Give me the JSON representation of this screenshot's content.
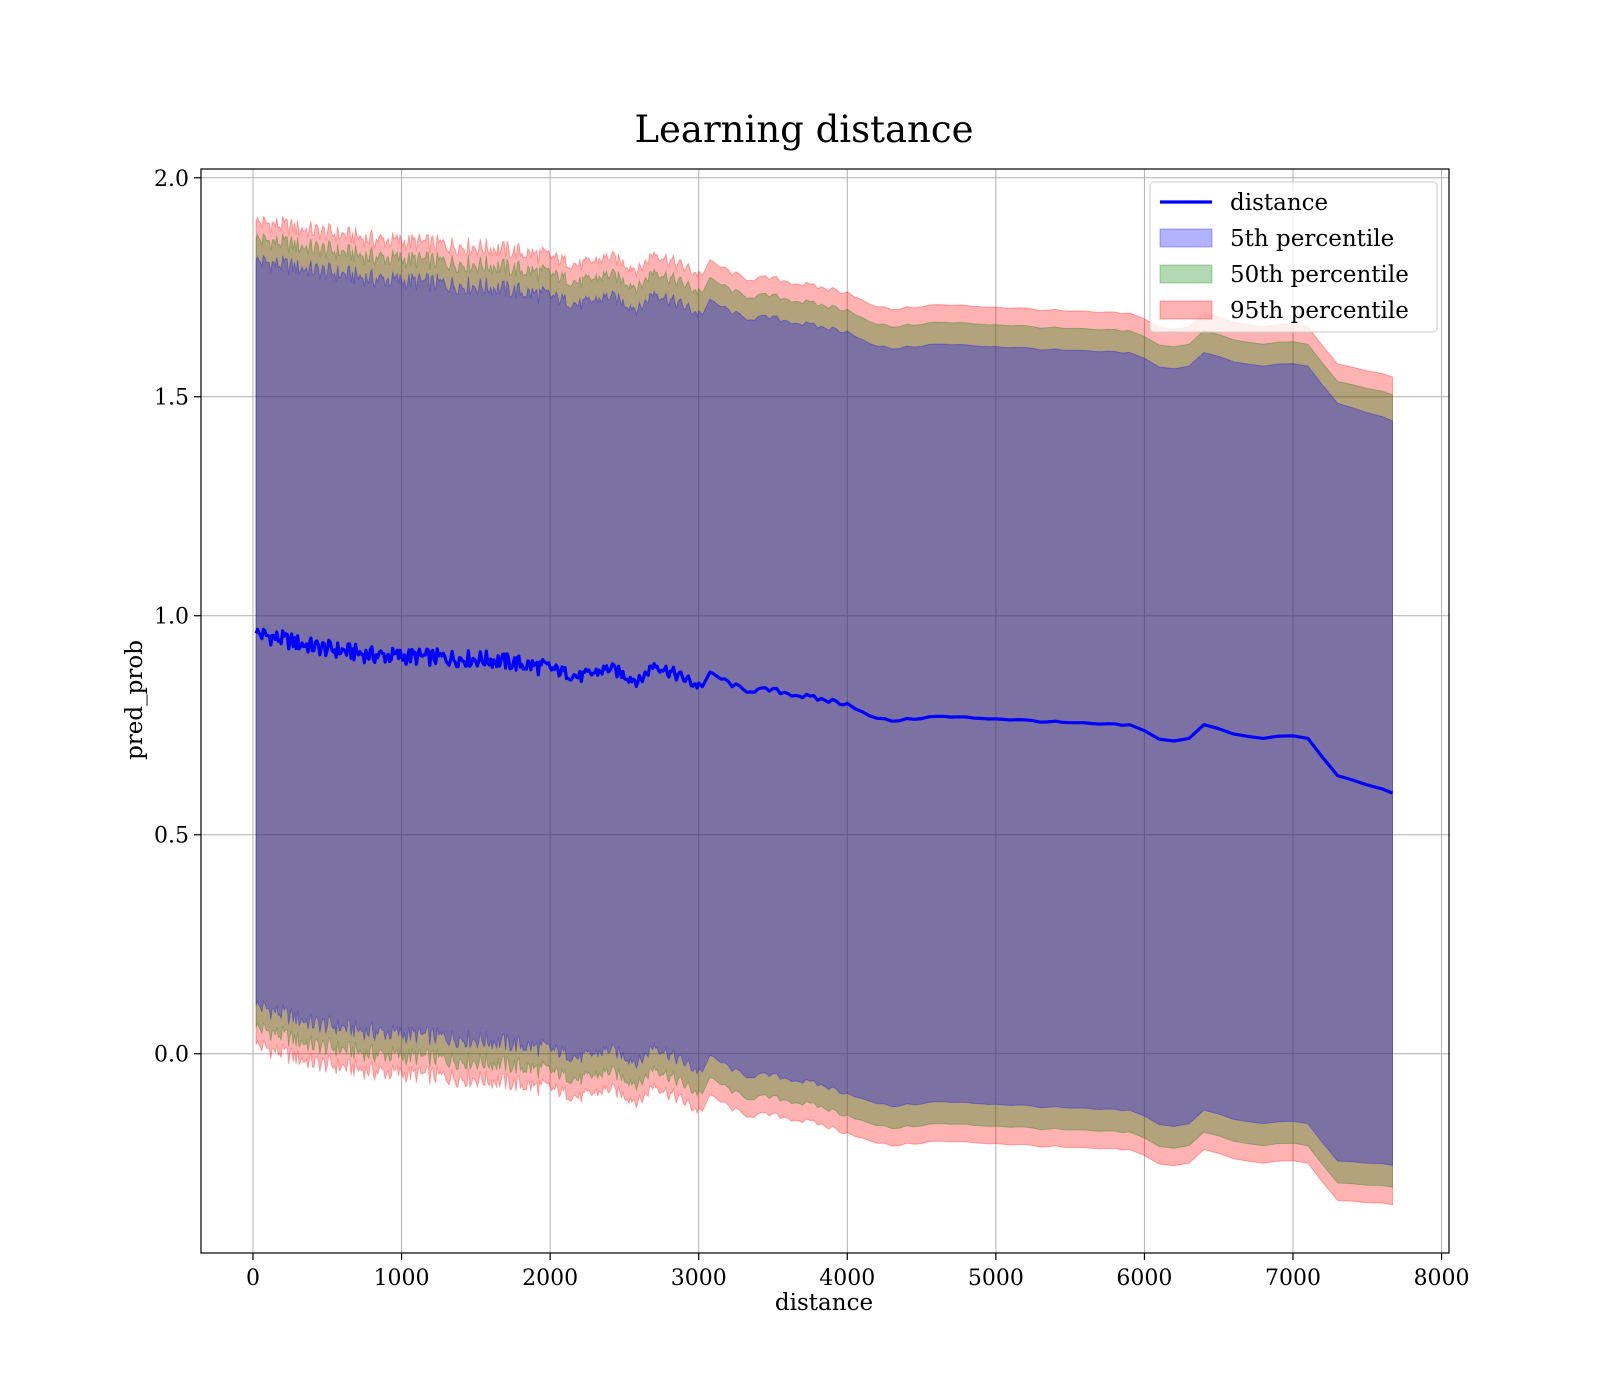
{
  "chart_data": {
    "type": "line",
    "title": "Learning distance",
    "xlabel": "distance",
    "ylabel": "pred_prob",
    "xlim": [
      -350,
      8050
    ],
    "ylim": [
      -0.455,
      2.02
    ],
    "x_ticks": [
      0,
      1000,
      2000,
      3000,
      4000,
      5000,
      6000,
      7000,
      8000
    ],
    "x_tick_labels": [
      "0",
      "1000",
      "2000",
      "3000",
      "4000",
      "5000",
      "6000",
      "7000",
      "8000"
    ],
    "y_ticks": [
      0.0,
      0.5,
      1.0,
      1.5,
      2.0
    ],
    "y_tick_labels": [
      "0.0",
      "0.5",
      "1.0",
      "1.5",
      "2.0"
    ],
    "grid": true,
    "legend_position": "top-right",
    "x": [
      20,
      400,
      800,
      1200,
      1600,
      2000,
      2200,
      2400,
      2600,
      2700,
      3000,
      3100,
      3300,
      3500,
      3800,
      4000,
      4150,
      4300,
      4600,
      5000,
      5500,
      5900,
      6050,
      6150,
      6300,
      6370,
      6600,
      6800,
      6950,
      7100,
      7300,
      7670
    ],
    "series": [
      {
        "name": "distance",
        "type": "line",
        "color": "#0000ff",
        "values": [
          0.96,
          0.93,
          0.91,
          0.905,
          0.9,
          0.88,
          0.86,
          0.88,
          0.85,
          0.89,
          0.84,
          0.865,
          0.83,
          0.83,
          0.81,
          0.8,
          0.77,
          0.76,
          0.77,
          0.765,
          0.755,
          0.75,
          0.73,
          0.71,
          0.72,
          0.755,
          0.73,
          0.72,
          0.73,
          0.72,
          0.635,
          0.595
        ]
      },
      {
        "name": "5th percentile",
        "type": "band",
        "color": "#0000ff",
        "lower": [
          0.11,
          0.07,
          0.05,
          0.04,
          0.03,
          0.01,
          -0.01,
          0.01,
          -0.02,
          0.02,
          -0.04,
          -0.01,
          -0.05,
          -0.05,
          -0.07,
          -0.09,
          -0.11,
          -0.12,
          -0.11,
          -0.115,
          -0.125,
          -0.13,
          -0.15,
          -0.17,
          -0.16,
          -0.125,
          -0.15,
          -0.16,
          -0.15,
          -0.16,
          -0.245,
          -0.255
        ],
        "upper": [
          1.81,
          1.79,
          1.77,
          1.76,
          1.75,
          1.73,
          1.71,
          1.73,
          1.7,
          1.74,
          1.69,
          1.715,
          1.68,
          1.68,
          1.66,
          1.65,
          1.62,
          1.61,
          1.62,
          1.615,
          1.605,
          1.6,
          1.58,
          1.56,
          1.57,
          1.605,
          1.58,
          1.57,
          1.58,
          1.57,
          1.485,
          1.445
        ]
      },
      {
        "name": "50th percentile",
        "type": "band",
        "color": "#008000",
        "lower": [
          0.06,
          0.02,
          0.0,
          -0.01,
          -0.02,
          -0.04,
          -0.06,
          -0.04,
          -0.07,
          -0.03,
          -0.09,
          -0.06,
          -0.1,
          -0.1,
          -0.12,
          -0.14,
          -0.16,
          -0.17,
          -0.16,
          -0.165,
          -0.175,
          -0.18,
          -0.2,
          -0.22,
          -0.21,
          -0.175,
          -0.2,
          -0.21,
          -0.2,
          -0.21,
          -0.295,
          -0.305
        ],
        "upper": [
          1.86,
          1.84,
          1.82,
          1.81,
          1.8,
          1.78,
          1.76,
          1.78,
          1.75,
          1.79,
          1.74,
          1.765,
          1.73,
          1.73,
          1.71,
          1.7,
          1.67,
          1.66,
          1.67,
          1.665,
          1.655,
          1.65,
          1.63,
          1.61,
          1.62,
          1.655,
          1.63,
          1.62,
          1.63,
          1.62,
          1.535,
          1.505
        ]
      },
      {
        "name": "95th percentile",
        "type": "band",
        "color": "#ff0000",
        "lower": [
          0.02,
          -0.02,
          -0.04,
          -0.05,
          -0.06,
          -0.08,
          -0.1,
          -0.08,
          -0.11,
          -0.07,
          -0.13,
          -0.1,
          -0.14,
          -0.14,
          -0.16,
          -0.18,
          -0.2,
          -0.21,
          -0.2,
          -0.205,
          -0.215,
          -0.22,
          -0.24,
          -0.26,
          -0.25,
          -0.215,
          -0.24,
          -0.25,
          -0.24,
          -0.25,
          -0.335,
          -0.345
        ],
        "upper": [
          1.9,
          1.88,
          1.86,
          1.85,
          1.84,
          1.82,
          1.8,
          1.82,
          1.79,
          1.83,
          1.78,
          1.805,
          1.77,
          1.77,
          1.75,
          1.74,
          1.71,
          1.7,
          1.71,
          1.705,
          1.695,
          1.69,
          1.67,
          1.65,
          1.66,
          1.695,
          1.67,
          1.66,
          1.67,
          1.66,
          1.575,
          1.545
        ]
      }
    ]
  }
}
